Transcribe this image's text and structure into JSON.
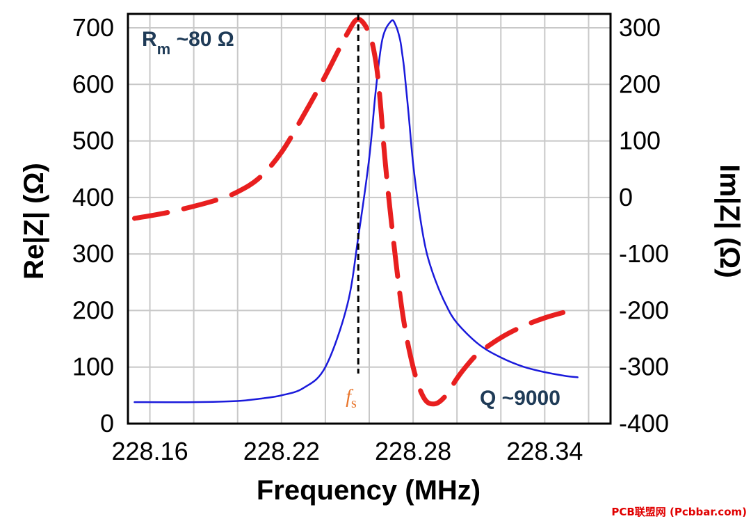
{
  "chart_data": {
    "type": "line",
    "xlabel": "Frequency (MHz)",
    "ylabel_left": "Re|Z| (Ω)",
    "ylabel_right": "Im|Z| (Ω)",
    "xlim": [
      228.15,
      228.37
    ],
    "x_ticks": [
      "228.16",
      "228.22",
      "228.28",
      "228.34"
    ],
    "x_tick_values": [
      228.16,
      228.22,
      228.28,
      228.34
    ],
    "ylim_left": [
      0,
      700
    ],
    "y_ticks_left": [
      "0",
      "100",
      "200",
      "300",
      "400",
      "500",
      "600",
      "700"
    ],
    "ylim_right": [
      -400,
      300
    ],
    "y_ticks_right": [
      "-400",
      "-300",
      "-200",
      "-100",
      "0",
      "100",
      "200",
      "300"
    ],
    "grid": true,
    "series": [
      {
        "axis": "left",
        "color": "#1a1adb",
        "style": "solid",
        "x": [
          228.153,
          228.18,
          228.2,
          228.21,
          228.22,
          228.23,
          228.24,
          228.25,
          228.255,
          228.26,
          228.263,
          228.266,
          228.27,
          228.272,
          228.274,
          228.275,
          228.276,
          228.278,
          228.28,
          228.283,
          228.286,
          228.29,
          228.295,
          228.3,
          228.31,
          228.32,
          228.33,
          228.34,
          228.35,
          228.355
        ],
        "y": [
          38,
          38,
          40,
          44,
          50,
          63,
          100,
          210,
          330,
          470,
          590,
          680,
          712,
          705,
          680,
          655,
          625,
          545,
          460,
          370,
          305,
          255,
          210,
          178,
          140,
          117,
          101,
          91,
          84,
          82
        ]
      },
      {
        "axis": "right",
        "color": "#e81f1f",
        "style": "dashed",
        "x": [
          228.153,
          228.17,
          228.19,
          228.2,
          228.21,
          228.22,
          228.23,
          228.24,
          228.25,
          228.255,
          228.26,
          228.263,
          228.265,
          228.267,
          228.27,
          228.275,
          228.28,
          228.285,
          228.29,
          228.295,
          228.3,
          228.305,
          228.31,
          228.32,
          228.33,
          228.34,
          228.35,
          228.355
        ],
        "y": [
          -37,
          -25,
          -5,
          10,
          35,
          80,
          145,
          215,
          290,
          315,
          290,
          240,
          170,
          75,
          -40,
          -200,
          -300,
          -355,
          -365,
          -350,
          -320,
          -295,
          -275,
          -248,
          -228,
          -213,
          -202,
          -198
        ]
      }
    ],
    "vline": {
      "x": 228.255,
      "style": "dashed",
      "color": "#000000",
      "label": "f",
      "label_sub": "s",
      "label_color": "#e8742a"
    },
    "annotations": {
      "rm_main": "R",
      "rm_sub": "m",
      "rm_rest": " ~80 Ω",
      "q": "Q ~9000"
    }
  },
  "watermark": "PCB联盟网 (Pcbbar.com)"
}
